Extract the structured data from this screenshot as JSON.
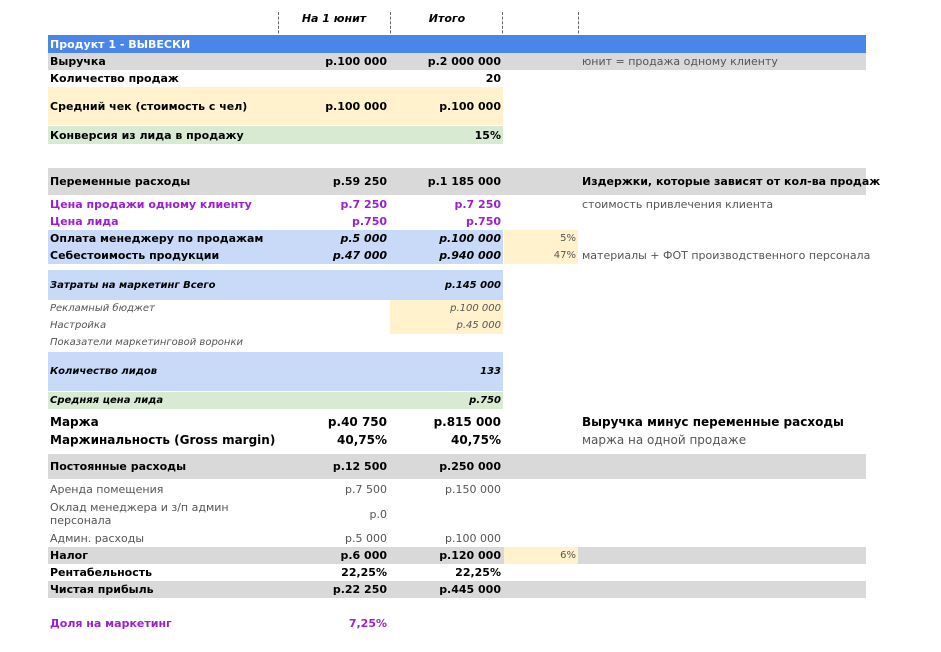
{
  "columns": {
    "unit": "На 1 юнит",
    "total": "Итого"
  },
  "section_title": "Продукт 1 - ВЫВЕСКИ",
  "rows": [
    {
      "label": "Выручка",
      "v1": "р.100 000",
      "v2": "р.2 000 000",
      "pct": "",
      "note": "юнит = продажа одному клиенту"
    },
    {
      "label": "Количество продаж",
      "v1": "",
      "v2": "20",
      "pct": "",
      "note": ""
    },
    {
      "label": "Средний чек (стоимость с чел)",
      "v1": "р.100 000",
      "v2": "р.100 000",
      "pct": "",
      "note": ""
    },
    {
      "label": "Конверсия из лида в продажу",
      "v1": "",
      "v2": "15%",
      "pct": "",
      "note": ""
    },
    {
      "label": "Переменные расходы",
      "v1": "р.59 250",
      "v2": "р.1 185 000",
      "pct": "",
      "note": "Издержки, которые зависят от кол-ва продаж"
    },
    {
      "label": "Цена продажи одному клиенту",
      "v1": "р.7 250",
      "v2": "р.7 250",
      "pct": "",
      "note": "стоимость привлечения клиента"
    },
    {
      "label": "Цена лида",
      "v1": "р.750",
      "v2": "р.750",
      "pct": "",
      "note": ""
    },
    {
      "label": "Оплата менеджеру по продажам",
      "v1": "р.5 000",
      "v2": "р.100 000",
      "pct": "5%",
      "note": ""
    },
    {
      "label": "Себестоимость продукции",
      "v1": "р.47 000",
      "v2": "р.940 000",
      "pct": "47%",
      "note": "материалы + ФОТ производственного персонала"
    },
    {
      "label": "Затраты на маркетинг Всего",
      "v1": "",
      "v2": "р.145 000",
      "pct": "",
      "note": ""
    },
    {
      "label": "Рекламный бюджет",
      "v1": "",
      "v2": "р.100 000",
      "pct": "",
      "note": ""
    },
    {
      "label": "Настройка",
      "v1": "",
      "v2": "р.45 000",
      "pct": "",
      "note": ""
    },
    {
      "label": "Показатели маркетинговой воронки",
      "v1": "",
      "v2": "",
      "pct": "",
      "note": ""
    },
    {
      "label": "Количество лидов",
      "v1": "",
      "v2": "133",
      "pct": "",
      "note": ""
    },
    {
      "label": "Средняя цена лида",
      "v1": "",
      "v2": "р.750",
      "pct": "",
      "note": ""
    },
    {
      "label": "Маржа",
      "v1": "р.40 750",
      "v2": "р.815 000",
      "pct": "",
      "note": "Выручка минус переменные расходы"
    },
    {
      "label": "Маржинальность (Gross margin)",
      "v1": "40,75%",
      "v2": "40,75%",
      "pct": "",
      "note": "маржа на одной продаже"
    },
    {
      "label": "Постоянные расходы",
      "v1": "р.12 500",
      "v2": "р.250 000",
      "pct": "",
      "note": ""
    },
    {
      "label": "Аренда помещения",
      "v1": "р.7 500",
      "v2": "р.150 000",
      "pct": "",
      "note": ""
    },
    {
      "label": "Оклад менеджера и з/п админ персонала",
      "v1": "р.0",
      "v2": "",
      "pct": "",
      "note": ""
    },
    {
      "label": "Админ. расходы",
      "v1": "р.5 000",
      "v2": "р.100 000",
      "pct": "",
      "note": ""
    },
    {
      "label": "Налог",
      "v1": "р.6 000",
      "v2": "р.120 000",
      "pct": "6%",
      "note": ""
    },
    {
      "label": "Рентабельность",
      "v1": "22,25%",
      "v2": "22,25%",
      "pct": "",
      "note": ""
    },
    {
      "label": "Чистая прибыль",
      "v1": "р.22 250",
      "v2": "р.445 000",
      "pct": "",
      "note": ""
    },
    {
      "label": "Доля на маркетинг",
      "v1": "7,25%",
      "v2": "",
      "pct": "",
      "note": ""
    }
  ],
  "colors": {
    "blue_header": "#4a86e8",
    "grey_row": "#d9d9d9",
    "yellow_input": "#fff2cc",
    "green_row": "#d9ead3",
    "light_blue_row": "#c9daf8",
    "purple_text": "#9b1fd1"
  }
}
